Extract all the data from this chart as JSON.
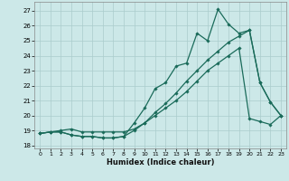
{
  "xlabel": "Humidex (Indice chaleur)",
  "bg_color": "#cce8e8",
  "grid_color": "#aacccc",
  "line_color": "#1a6b5a",
  "xlim": [
    -0.5,
    23.5
  ],
  "ylim": [
    17.8,
    27.6
  ],
  "yticks": [
    18,
    19,
    20,
    21,
    22,
    23,
    24,
    25,
    26,
    27
  ],
  "xticks": [
    0,
    1,
    2,
    3,
    4,
    5,
    6,
    7,
    8,
    9,
    10,
    11,
    12,
    13,
    14,
    15,
    16,
    17,
    18,
    19,
    20,
    21,
    22,
    23
  ],
  "series1_x": [
    0,
    1,
    2,
    3,
    4,
    5,
    6,
    7,
    8,
    9,
    10,
    11,
    12,
    13,
    14,
    15,
    16,
    17,
    18,
    19,
    20,
    21,
    22,
    23
  ],
  "series1_y": [
    18.8,
    18.9,
    18.9,
    18.7,
    18.6,
    18.6,
    18.5,
    18.5,
    18.6,
    19.5,
    20.5,
    21.8,
    22.2,
    23.3,
    23.5,
    25.5,
    25.0,
    27.1,
    26.1,
    25.5,
    25.7,
    22.2,
    20.9,
    20.0
  ],
  "series2_x": [
    0,
    1,
    2,
    3,
    4,
    5,
    6,
    7,
    8,
    9,
    10,
    11,
    12,
    13,
    14,
    15,
    16,
    17,
    18,
    19,
    20,
    21,
    22,
    23
  ],
  "series2_y": [
    18.8,
    18.9,
    19.0,
    19.1,
    18.9,
    18.9,
    18.9,
    18.9,
    18.9,
    19.1,
    19.5,
    20.2,
    20.8,
    21.5,
    22.3,
    23.0,
    23.7,
    24.3,
    24.9,
    25.3,
    25.7,
    22.2,
    20.9,
    20.0
  ],
  "series3_x": [
    0,
    1,
    2,
    3,
    4,
    5,
    6,
    7,
    8,
    9,
    10,
    11,
    12,
    13,
    14,
    15,
    16,
    17,
    18,
    19,
    20,
    21,
    22,
    23
  ],
  "series3_y": [
    18.8,
    18.9,
    18.9,
    18.7,
    18.6,
    18.6,
    18.5,
    18.5,
    18.6,
    19.0,
    19.5,
    20.0,
    20.5,
    21.0,
    21.6,
    22.3,
    23.0,
    23.5,
    24.0,
    24.5,
    19.8,
    19.6,
    19.4,
    20.0
  ]
}
